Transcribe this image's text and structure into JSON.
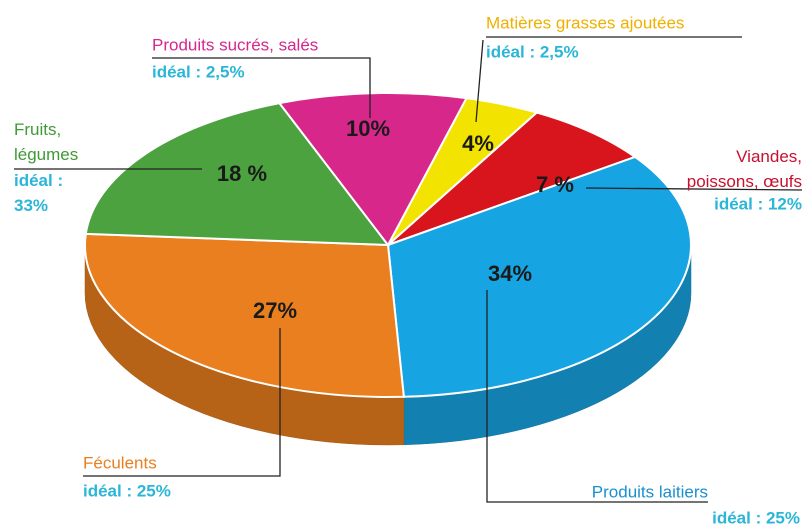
{
  "chart_data": {
    "type": "pie",
    "categories": [
      "Matières grasses ajoutées",
      "Viandes,\npoissons, œufs",
      "Produits laitiers",
      "Féculents",
      "Fruits,\nlégumes",
      "Produits sucrés, salés"
    ],
    "values": [
      4,
      7,
      34,
      27,
      18,
      10
    ],
    "value_labels": [
      "4%",
      "7 %",
      "34%",
      "27%",
      "18 %",
      "10%"
    ],
    "ideal_labels": [
      "idéal : 2,5%",
      "idéal : 12%",
      "idéal : 25%",
      "idéal : 25%",
      "idéal :\n33%",
      "idéal : 2,5%"
    ],
    "colors": [
      "#f3e300",
      "#d8141c",
      "#17a4e2",
      "#e97f1f",
      "#4ba23f",
      "#d7278b"
    ],
    "label_colors": [
      "#f0b000",
      "#c8102e",
      "#1a8fd0",
      "#e97f1f",
      "#3f9a35",
      "#d7278b"
    ],
    "ideal_color": "#2bb6d8"
  }
}
